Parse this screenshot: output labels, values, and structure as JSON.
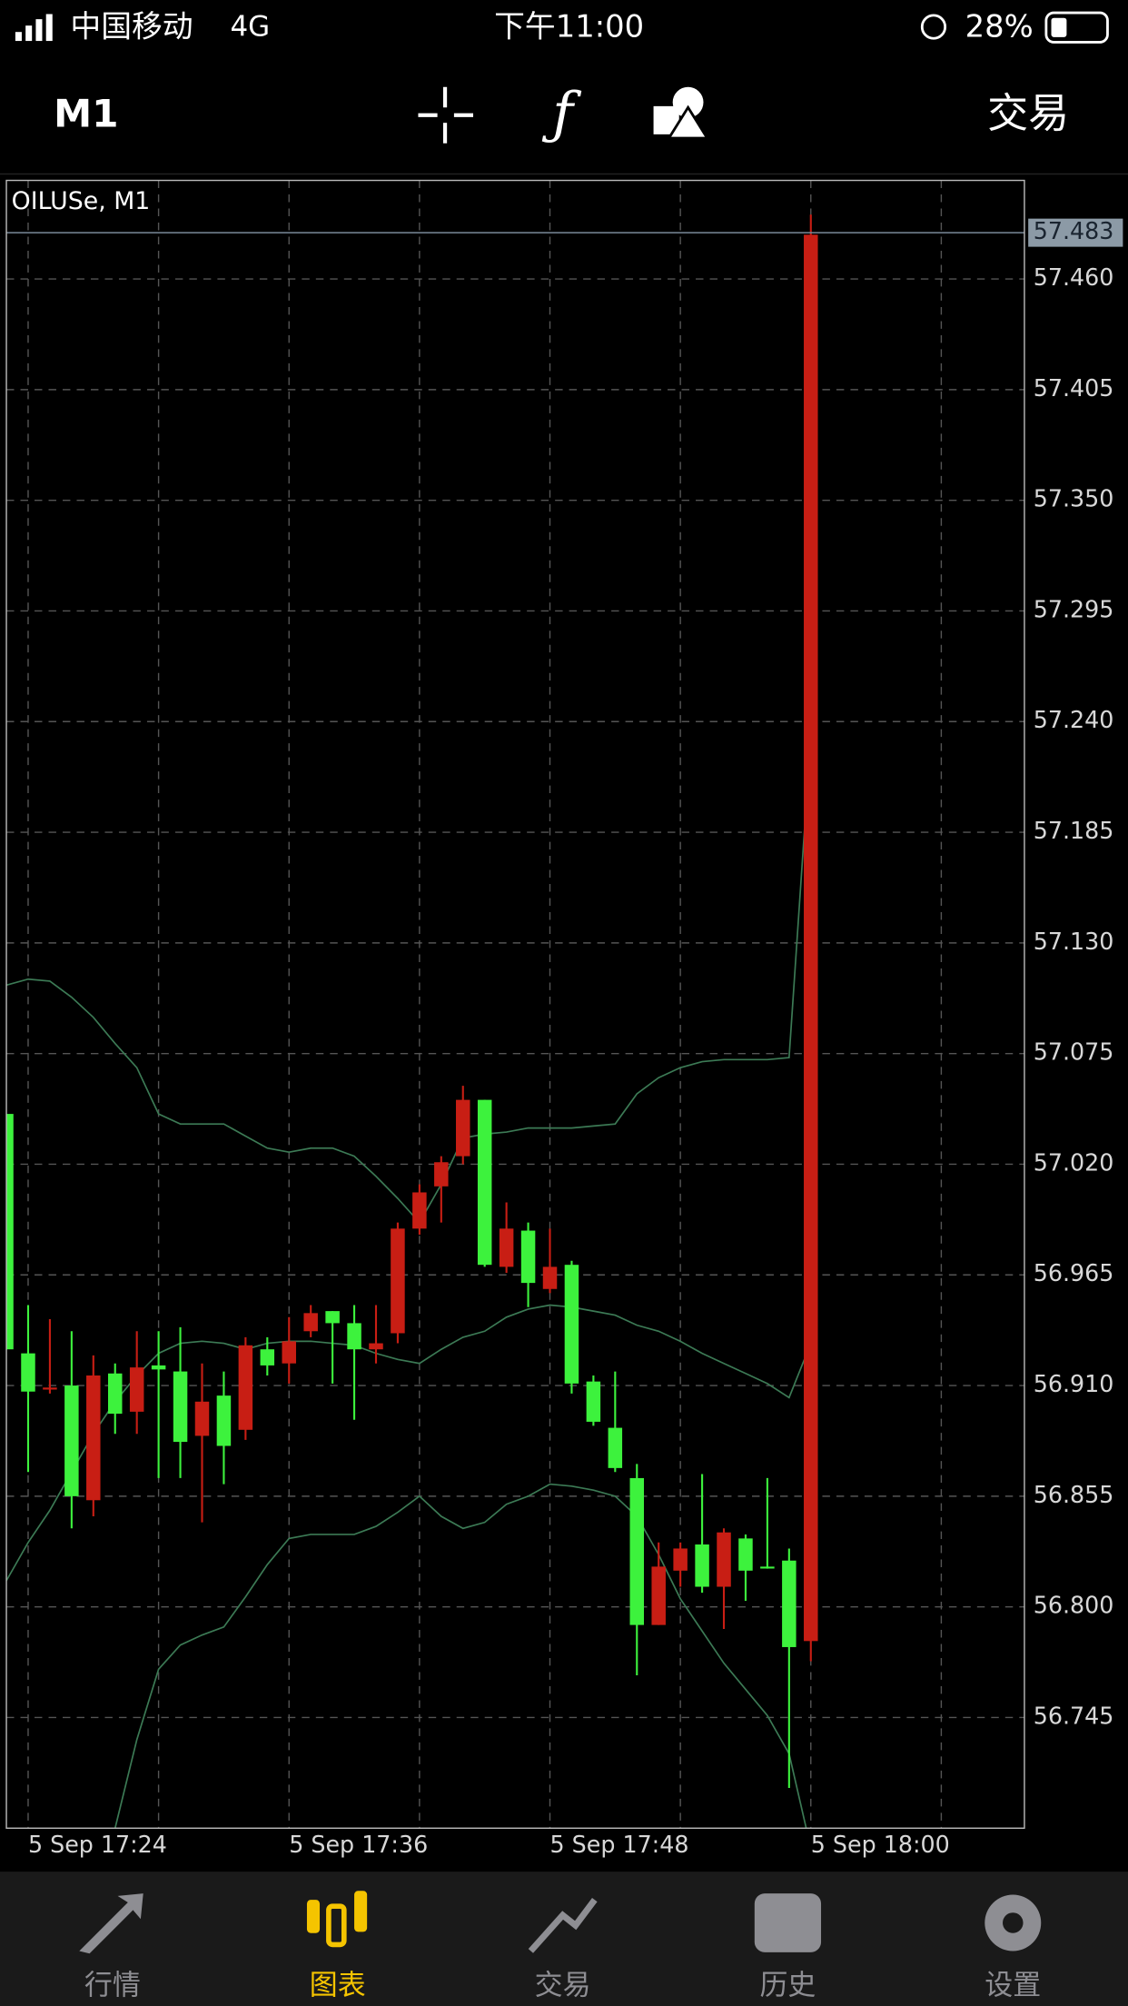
{
  "status_bar": {
    "carrier": "中国移动",
    "network": "4G",
    "time": "下午11:00",
    "battery": "28%"
  },
  "toolbar": {
    "timeframe": "M1",
    "trade": "交易"
  },
  "chart_data": {
    "type": "candlestick",
    "title": "OILUSe, M1",
    "categories": [
      null,
      "5 Sep 17:24",
      null,
      null,
      null,
      null,
      null,
      null,
      null,
      null,
      null,
      null,
      null,
      "5 Sep 17:36",
      null,
      null,
      null,
      null,
      null,
      null,
      null,
      null,
      null,
      null,
      null,
      "5 Sep 17:48",
      null,
      null,
      null,
      null,
      null,
      null,
      null,
      null,
      null,
      null,
      null,
      "5 Sep 18:00"
    ],
    "open": [
      56.928,
      56.907,
      56.909,
      56.855,
      56.915,
      56.896,
      56.919,
      56.918,
      56.882,
      56.902,
      56.88,
      56.93,
      56.92,
      56.932,
      56.946,
      56.941,
      56.928,
      56.931,
      56.988,
      57.006,
      57.021,
      57.052,
      56.97,
      56.988,
      56.961,
      56.969,
      56.911,
      56.892,
      56.869,
      56.791,
      56.82,
      56.829,
      56.81,
      56.837,
      56.818,
      56.82,
      56.78,
      57.482
    ],
    "high": [
      57.045,
      56.95,
      56.943,
      56.937,
      56.925,
      56.921,
      56.937,
      56.937,
      56.939,
      56.921,
      56.917,
      56.934,
      56.934,
      56.944,
      56.95,
      56.947,
      56.95,
      56.95,
      56.991,
      57.01,
      57.024,
      57.059,
      57.052,
      57.001,
      56.991,
      56.988,
      56.972,
      56.915,
      56.917,
      56.871,
      56.832,
      56.832,
      56.866,
      56.839,
      56.836,
      56.864,
      56.829,
      57.492
    ],
    "low": [
      56.928,
      56.867,
      56.906,
      56.839,
      56.845,
      56.886,
      56.886,
      56.864,
      56.864,
      56.842,
      56.861,
      56.883,
      56.915,
      56.911,
      56.934,
      56.911,
      56.893,
      56.921,
      56.931,
      56.985,
      56.991,
      57.02,
      56.969,
      56.966,
      56.949,
      56.956,
      56.906,
      56.89,
      56.867,
      56.766,
      56.791,
      56.81,
      56.807,
      56.789,
      56.803,
      56.819,
      56.71,
      56.773
    ],
    "close": [
      57.045,
      56.926,
      56.908,
      56.91,
      56.853,
      56.916,
      56.897,
      56.92,
      56.917,
      56.885,
      56.905,
      56.888,
      56.928,
      56.921,
      56.937,
      56.947,
      56.941,
      56.928,
      56.936,
      56.988,
      57.009,
      57.024,
      57.052,
      56.969,
      56.987,
      56.958,
      56.97,
      56.912,
      56.889,
      56.864,
      56.791,
      56.818,
      56.831,
      56.81,
      56.834,
      56.82,
      56.823,
      56.783
    ],
    "up_color": "#3df23d",
    "down_color": "#c81e14",
    "series": [
      {
        "color": "#3c7a55",
        "values": [
          57.109,
          57.112,
          57.111,
          57.103,
          57.093,
          57.08,
          57.068,
          57.045,
          57.04,
          57.04,
          57.04,
          57.034,
          57.028,
          57.026,
          57.028,
          57.028,
          57.024,
          57.014,
          57.003,
          56.991,
          57.01,
          57.033,
          57.035,
          57.036,
          57.038,
          57.038,
          57.038,
          57.039,
          57.04,
          57.055,
          57.063,
          57.068,
          57.071,
          57.072,
          57.072,
          57.072,
          57.073,
          57.233
        ]
      },
      {
        "color": "#3c7a55",
        "values": [
          56.813,
          56.832,
          56.848,
          56.867,
          56.886,
          56.902,
          56.915,
          56.926,
          56.931,
          56.932,
          56.931,
          56.928,
          56.931,
          56.932,
          56.932,
          56.931,
          56.93,
          56.926,
          56.923,
          56.921,
          56.928,
          56.934,
          56.937,
          56.944,
          56.948,
          56.95,
          56.949,
          56.947,
          56.945,
          56.94,
          56.937,
          56.932,
          56.926,
          56.921,
          56.916,
          56.911,
          56.904,
          56.931
        ]
      },
      {
        "color": "#3c7a55",
        "values": [
          null,
          null,
          null,
          null,
          null,
          56.69,
          56.734,
          56.769,
          56.781,
          56.786,
          56.79,
          56.805,
          56.821,
          56.834,
          56.836,
          56.836,
          56.836,
          56.84,
          56.847,
          56.855,
          56.845,
          56.839,
          56.842,
          56.851,
          56.855,
          56.861,
          56.86,
          56.858,
          56.855,
          56.845,
          56.826,
          56.804,
          56.788,
          56.772,
          56.759,
          56.746,
          56.727,
          56.68
        ]
      }
    ],
    "last_price": 57.483,
    "ylim": [
      56.69,
      57.509
    ],
    "yticks": [
      {
        "value": 57.46,
        "label": "57.460"
      },
      57.405,
      {
        "value": 57.35,
        "label": "57.350"
      },
      57.295,
      {
        "value": 57.24,
        "label": "57.240"
      },
      57.185,
      {
        "value": 57.13,
        "label": "57.130"
      },
      57.075,
      {
        "value": 57.02,
        "label": "57.020"
      },
      56.965,
      {
        "value": 56.91,
        "label": "56.910"
      },
      56.855,
      {
        "value": 56.8,
        "label": "56.800"
      },
      56.745
    ],
    "grid": true
  },
  "tab_bar": {
    "tabs": [
      "行情",
      "图表",
      "交易",
      "历史",
      "设置"
    ],
    "active": 1
  }
}
